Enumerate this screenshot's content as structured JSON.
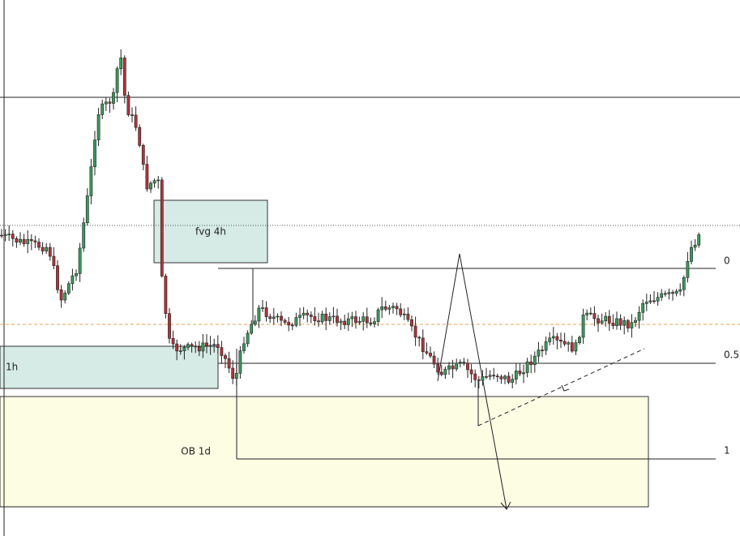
{
  "zones": [
    {
      "label": "fvg 4h"
    },
    {
      "label": "1h"
    },
    {
      "label": "OB 1d"
    }
  ],
  "fib_levels": [
    {
      "label": 0
    },
    {
      "label": 0.5
    },
    {
      "label": 1
    }
  ]
}
